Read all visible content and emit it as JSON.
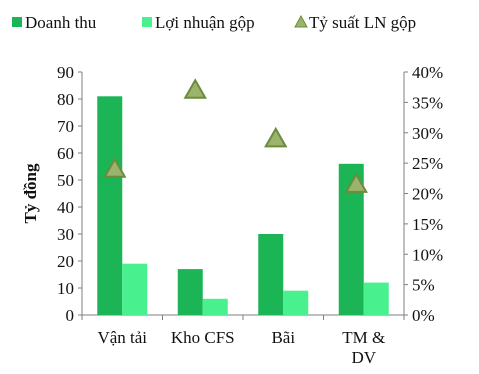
{
  "chart_data": {
    "type": "bar",
    "categories": [
      "Vận tải",
      "Kho CFS",
      "Bãi",
      "TM & DV"
    ],
    "series": [
      {
        "name": "Doanh thu",
        "values": [
          81,
          17,
          30,
          56
        ],
        "axis": "left",
        "kind": "bar",
        "color": "#1bb556"
      },
      {
        "name": "Lợi nhuận gộp",
        "values": [
          19,
          6,
          9,
          12
        ],
        "axis": "left",
        "kind": "bar",
        "color": "#48f08e"
      },
      {
        "name": "Tỷ suất LN gộp",
        "values": [
          24,
          37,
          29,
          21.5
        ],
        "axis": "right",
        "kind": "marker",
        "color": "#9bb36c"
      }
    ],
    "ylabel": "Tỷ đồng",
    "ylim": [
      0,
      90
    ],
    "yticks": [
      "0",
      "10",
      "20",
      "30",
      "40",
      "50",
      "60",
      "70",
      "80",
      "90"
    ],
    "y2lim": [
      0,
      40
    ],
    "y2ticks": [
      "0%",
      "5%",
      "10%",
      "15%",
      "20%",
      "25%",
      "30%",
      "35%",
      "40%"
    ],
    "grid": false,
    "legend": "top"
  }
}
